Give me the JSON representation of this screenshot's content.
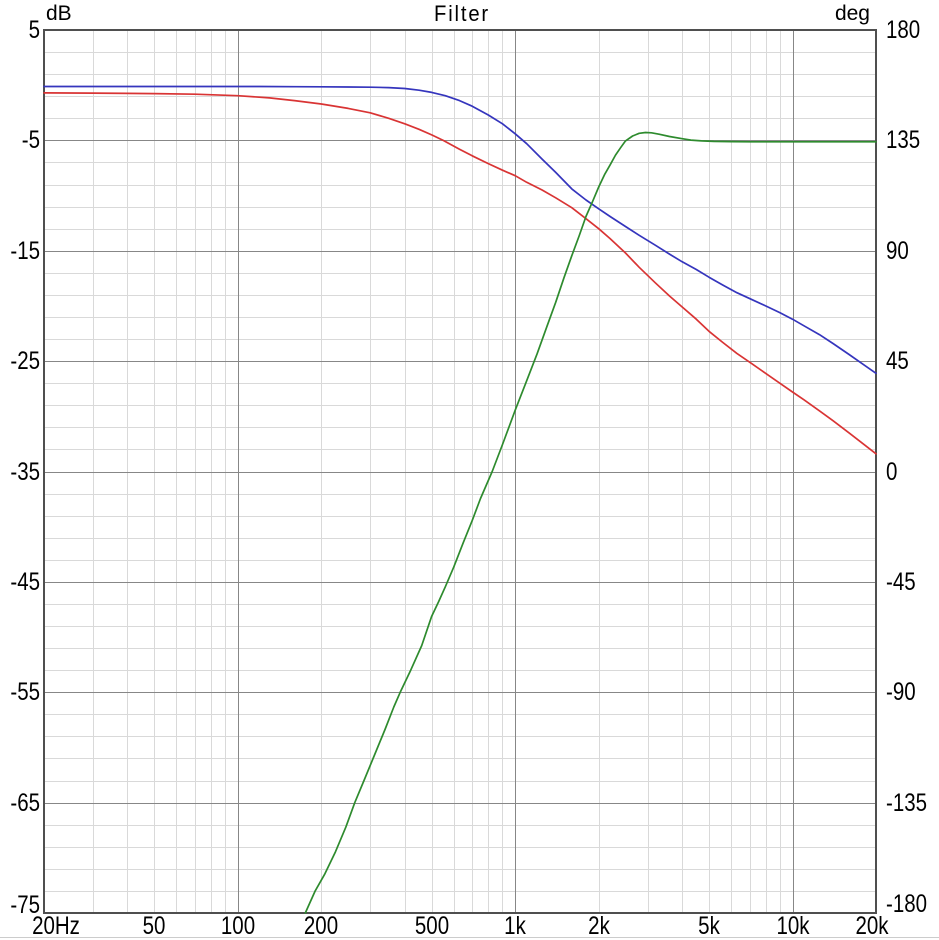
{
  "chart_data": {
    "type": "line",
    "title": "Filter",
    "grid": "on",
    "legend": "none",
    "colors": {
      "blue": "#3535bd",
      "red": "#d93434",
      "green": "#2e8b2e",
      "grid_major": "#878787",
      "grid_minor": "#d9d9d9",
      "border": "#4f4f4f",
      "background": "#ffffff",
      "text": "#000000"
    },
    "x_axis": {
      "scale": "log",
      "min": 20,
      "max": 20000,
      "unit": "Hz",
      "major_gridlines": [
        100,
        1000,
        10000
      ],
      "ticks": [
        {
          "f": 20,
          "label": "20Hz"
        },
        {
          "f": 50,
          "label": "50"
        },
        {
          "f": 100,
          "label": "100"
        },
        {
          "f": 200,
          "label": "200"
        },
        {
          "f": 500,
          "label": "500"
        },
        {
          "f": 1000,
          "label": "1k"
        },
        {
          "f": 2000,
          "label": "2k"
        },
        {
          "f": 5000,
          "label": "5k"
        },
        {
          "f": 10000,
          "label": "10k"
        },
        {
          "f": 20000,
          "label": "20k"
        }
      ]
    },
    "y_left": {
      "label": "dB",
      "min": -75,
      "max": 5,
      "major_step": 10,
      "minor_step": 2,
      "ticks": [
        {
          "v": 5,
          "label": "5"
        },
        {
          "v": -5,
          "label": "-5"
        },
        {
          "v": -15,
          "label": "-15"
        },
        {
          "v": -25,
          "label": "-25"
        },
        {
          "v": -35,
          "label": "-35"
        },
        {
          "v": -45,
          "label": "-45"
        },
        {
          "v": -55,
          "label": "-55"
        },
        {
          "v": -65,
          "label": "-65"
        },
        {
          "v": -75,
          "label": "-75"
        }
      ]
    },
    "y_right": {
      "label": "deg",
      "min": -180,
      "max": 180,
      "major_step": 45,
      "ticks": [
        {
          "v": 180,
          "label": "180"
        },
        {
          "v": 135,
          "label": "135"
        },
        {
          "v": 90,
          "label": "90"
        },
        {
          "v": 45,
          "label": "45"
        },
        {
          "v": 0,
          "label": "0"
        },
        {
          "v": -45,
          "label": "-45"
        },
        {
          "v": -90,
          "label": "-90"
        },
        {
          "v": -135,
          "label": "-135"
        },
        {
          "v": -180,
          "label": "-180"
        }
      ]
    },
    "series": [
      {
        "name": "blue",
        "axis": "left",
        "color_key": "blue",
        "unit": "dB",
        "points": [
          [
            20,
            -0.12
          ],
          [
            30,
            -0.12
          ],
          [
            50,
            -0.12
          ],
          [
            80,
            -0.12
          ],
          [
            120,
            -0.12
          ],
          [
            160,
            -0.14
          ],
          [
            200,
            -0.15
          ],
          [
            250,
            -0.16
          ],
          [
            300,
            -0.18
          ],
          [
            350,
            -0.22
          ],
          [
            400,
            -0.3
          ],
          [
            450,
            -0.45
          ],
          [
            500,
            -0.65
          ],
          [
            560,
            -0.95
          ],
          [
            630,
            -1.4
          ],
          [
            700,
            -1.9
          ],
          [
            800,
            -2.7
          ],
          [
            900,
            -3.5
          ],
          [
            1000,
            -4.4
          ],
          [
            1100,
            -5.3
          ],
          [
            1250,
            -6.7
          ],
          [
            1400,
            -7.9
          ],
          [
            1600,
            -9.4
          ],
          [
            1800,
            -10.4
          ],
          [
            2000,
            -11.2
          ],
          [
            2200,
            -11.9
          ],
          [
            2500,
            -12.8
          ],
          [
            2800,
            -13.6
          ],
          [
            3200,
            -14.5
          ],
          [
            3600,
            -15.3
          ],
          [
            4000,
            -16.0
          ],
          [
            4500,
            -16.7
          ],
          [
            5000,
            -17.4
          ],
          [
            5600,
            -18.1
          ],
          [
            6300,
            -18.8
          ],
          [
            7100,
            -19.4
          ],
          [
            8000,
            -20.0
          ],
          [
            9000,
            -20.6
          ],
          [
            10000,
            -21.2
          ],
          [
            11000,
            -21.8
          ],
          [
            12500,
            -22.6
          ],
          [
            14000,
            -23.4
          ],
          [
            16000,
            -24.4
          ],
          [
            18000,
            -25.3
          ],
          [
            20000,
            -26.1
          ]
        ]
      },
      {
        "name": "red",
        "axis": "left",
        "color_key": "red",
        "unit": "dB",
        "points": [
          [
            20,
            -0.7
          ],
          [
            30,
            -0.72
          ],
          [
            50,
            -0.76
          ],
          [
            70,
            -0.82
          ],
          [
            100,
            -0.95
          ],
          [
            130,
            -1.15
          ],
          [
            160,
            -1.4
          ],
          [
            200,
            -1.7
          ],
          [
            250,
            -2.1
          ],
          [
            300,
            -2.5
          ],
          [
            350,
            -3.0
          ],
          [
            400,
            -3.5
          ],
          [
            450,
            -4.0
          ],
          [
            500,
            -4.5
          ],
          [
            550,
            -5.0
          ],
          [
            630,
            -5.8
          ],
          [
            700,
            -6.4
          ],
          [
            800,
            -7.1
          ],
          [
            900,
            -7.7
          ],
          [
            1000,
            -8.2
          ],
          [
            1100,
            -8.8
          ],
          [
            1250,
            -9.5
          ],
          [
            1400,
            -10.2
          ],
          [
            1600,
            -11.1
          ],
          [
            1800,
            -12.1
          ],
          [
            2000,
            -13.0
          ],
          [
            2200,
            -13.9
          ],
          [
            2500,
            -15.2
          ],
          [
            2800,
            -16.5
          ],
          [
            3200,
            -17.9
          ],
          [
            3600,
            -19.1
          ],
          [
            4000,
            -20.1
          ],
          [
            4500,
            -21.2
          ],
          [
            5000,
            -22.3
          ],
          [
            5600,
            -23.3
          ],
          [
            6300,
            -24.3
          ],
          [
            7100,
            -25.2
          ],
          [
            8000,
            -26.1
          ],
          [
            9000,
            -27.0
          ],
          [
            10000,
            -27.8
          ],
          [
            11000,
            -28.5
          ],
          [
            12500,
            -29.5
          ],
          [
            14000,
            -30.4
          ],
          [
            16000,
            -31.5
          ],
          [
            18000,
            -32.5
          ],
          [
            20000,
            -33.4
          ]
        ]
      },
      {
        "name": "green",
        "axis": "right",
        "color_key": "green",
        "unit": "deg",
        "points": [
          [
            175,
            -180
          ],
          [
            190,
            -171
          ],
          [
            206,
            -164
          ],
          [
            225,
            -155
          ],
          [
            245,
            -145
          ],
          [
            264,
            -135
          ],
          [
            285,
            -126
          ],
          [
            310,
            -116
          ],
          [
            340,
            -105
          ],
          [
            365,
            -96
          ],
          [
            385,
            -90
          ],
          [
            420,
            -81
          ],
          [
            460,
            -71
          ],
          [
            500,
            -59
          ],
          [
            530,
            -53
          ],
          [
            560,
            -47
          ],
          [
            600,
            -39
          ],
          [
            650,
            -29
          ],
          [
            700,
            -20
          ],
          [
            750,
            -11
          ],
          [
            826,
            0
          ],
          [
            900,
            11
          ],
          [
            1000,
            25
          ],
          [
            1100,
            37
          ],
          [
            1200,
            48
          ],
          [
            1300,
            59
          ],
          [
            1400,
            69
          ],
          [
            1500,
            79
          ],
          [
            1600,
            88
          ],
          [
            1700,
            96
          ],
          [
            1800,
            104
          ],
          [
            1900,
            110
          ],
          [
            2000,
            116
          ],
          [
            2100,
            121
          ],
          [
            2200,
            125
          ],
          [
            2300,
            129
          ],
          [
            2400,
            132
          ],
          [
            2500,
            134.8
          ],
          [
            2650,
            136.8
          ],
          [
            2800,
            137.9
          ],
          [
            2950,
            138.2
          ],
          [
            3100,
            138.1
          ],
          [
            3300,
            137.5
          ],
          [
            3600,
            136.6
          ],
          [
            4000,
            135.7
          ],
          [
            4300,
            135.1
          ],
          [
            4700,
            134.8
          ],
          [
            5200,
            134.6
          ],
          [
            6000,
            134.5
          ],
          [
            7000,
            134.4
          ],
          [
            8500,
            134.4
          ],
          [
            10000,
            134.4
          ],
          [
            13000,
            134.4
          ],
          [
            16000,
            134.4
          ],
          [
            20000,
            134.4
          ]
        ]
      }
    ]
  }
}
